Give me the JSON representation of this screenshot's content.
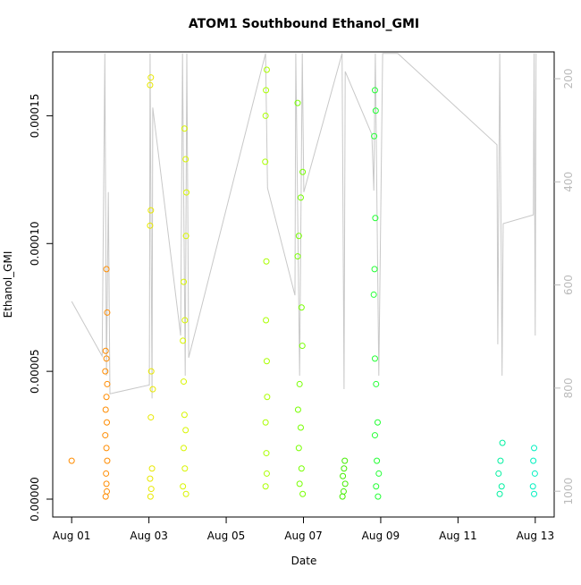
{
  "chart_data": {
    "type": "scatter",
    "title": "ATOM1 Southbound Ethanol_GMI",
    "x_label": "Date",
    "y_label": "Ethanol_GMI",
    "xlim": [
      0.51,
      13.49
    ],
    "xticks": [
      {
        "value": 1,
        "label": "Aug 01"
      },
      {
        "value": 3,
        "label": "Aug 03"
      },
      {
        "value": 5,
        "label": "Aug 05"
      },
      {
        "value": 7,
        "label": "Aug 07"
      },
      {
        "value": 9,
        "label": "Aug 09"
      },
      {
        "value": 11,
        "label": "Aug 11"
      },
      {
        "value": 13,
        "label": "Aug 13"
      }
    ],
    "ylim": [
      -7e-06,
      0.000175
    ],
    "yticks": [
      {
        "value": 0,
        "label": "0.00000"
      },
      {
        "value": 5e-05,
        "label": "0.00005"
      },
      {
        "value": 0.0001,
        "label": "0.00010"
      },
      {
        "value": 0.00015,
        "label": "0.00015"
      }
    ],
    "y2lim": [
      1050,
      148
    ],
    "y2ticks": [
      200,
      400,
      600,
      800,
      1000
    ],
    "series": [
      {
        "style": "line",
        "axis": "y2",
        "color": "#c8c8c8",
        "x": [
          1.0,
          1.79,
          1.86,
          1.9,
          1.95,
          1.99,
          3.01,
          3.03,
          3.08,
          3.1,
          3.82,
          3.87,
          3.94,
          3.98,
          4.03,
          6.02,
          6.07,
          6.78,
          6.8,
          6.9,
          6.97,
          7.01,
          8.0,
          8.05,
          8.08,
          8.77,
          8.82,
          8.86,
          8.95,
          9.05,
          9.44,
          12.01,
          12.03,
          12.08,
          12.14,
          12.17,
          12.95,
          12.97,
          13.0,
          13.02
        ],
        "values": [
          632,
          738,
          151,
          776,
          420,
          811,
          794,
          151,
          820,
          256,
          698,
          151,
          776,
          151,
          741,
          151,
          412,
          620,
          151,
          776,
          151,
          420,
          151,
          802,
          186,
          308,
          417,
          151,
          776,
          151,
          151,
          328,
          715,
          151,
          776,
          481,
          464,
          151,
          698,
          151
        ]
      },
      {
        "style": "points",
        "color": "#ff8c00",
        "x": [
          1.0
        ],
        "values": [
          1.5e-05
        ]
      },
      {
        "style": "points",
        "color": "#ff8c00",
        "x": [
          1.9,
          1.92,
          1.88,
          1.9,
          1.87,
          1.92,
          1.9,
          1.88,
          1.91,
          1.87,
          1.9,
          1.92,
          1.89,
          1.9,
          1.91,
          1.88
        ],
        "values": [
          9e-05,
          7.3e-05,
          5.8e-05,
          5.5e-05,
          5e-05,
          4.5e-05,
          4e-05,
          3.5e-05,
          3e-05,
          2.5e-05,
          2e-05,
          1.5e-05,
          1e-05,
          6e-06,
          3e-06,
          1e-06
        ]
      },
      {
        "style": "points",
        "color": "#e8e800",
        "x": [
          3.05,
          3.03,
          3.05,
          3.03,
          3.06,
          3.1,
          3.05,
          3.08,
          3.03,
          3.06,
          3.04
        ],
        "values": [
          0.000165,
          0.000162,
          0.000113,
          0.000107,
          5e-05,
          4.3e-05,
          3.2e-05,
          1.2e-05,
          8e-06,
          4e-06,
          1e-06
        ]
      },
      {
        "style": "points",
        "color": "#d8f500",
        "x": [
          3.92,
          3.95,
          3.97,
          3.96,
          3.9,
          3.93,
          3.88,
          3.9,
          3.92,
          3.95,
          3.9,
          3.93,
          3.88,
          3.96
        ],
        "values": [
          0.000145,
          0.000133,
          0.00012,
          0.000103,
          8.5e-05,
          7e-05,
          6.2e-05,
          4.6e-05,
          3.3e-05,
          2.7e-05,
          2e-05,
          1.2e-05,
          5e-06,
          2e-06
        ]
      },
      {
        "style": "points",
        "color": "#aaff00",
        "x": [
          6.05,
          6.03,
          6.02,
          6.01,
          6.04,
          6.03,
          6.05,
          6.06,
          6.02,
          6.04,
          6.05,
          6.02
        ],
        "values": [
          0.000168,
          0.00016,
          0.00015,
          0.000132,
          9.3e-05,
          7e-05,
          5.4e-05,
          4e-05,
          3e-05,
          1.8e-05,
          1e-05,
          5e-06
        ]
      },
      {
        "style": "points",
        "color": "#77ff00",
        "x": [
          6.85,
          6.98,
          6.93,
          6.88,
          6.85,
          6.95,
          6.97,
          6.9,
          6.86,
          6.93,
          6.88,
          6.95,
          6.9,
          6.98
        ],
        "values": [
          0.000155,
          0.000128,
          0.000118,
          0.000103,
          9.5e-05,
          7.5e-05,
          6e-05,
          4.5e-05,
          3.5e-05,
          2.8e-05,
          2e-05,
          1.2e-05,
          6e-06,
          2e-06
        ]
      },
      {
        "style": "points",
        "color": "#44ee00",
        "x": [
          8.07,
          8.05,
          8.02,
          8.08,
          8.04,
          8.01
        ],
        "values": [
          1.5e-05,
          1.2e-05,
          9e-06,
          6e-06,
          3e-06,
          1e-06
        ]
      },
      {
        "style": "points",
        "color": "#22ff33",
        "x": [
          8.85,
          8.87,
          8.83,
          8.86,
          8.84,
          8.82,
          8.85,
          8.88,
          8.92,
          8.85,
          8.9,
          8.95,
          8.88,
          8.93
        ],
        "values": [
          0.00016,
          0.000152,
          0.000142,
          0.00011,
          9e-05,
          8e-05,
          5.5e-05,
          4.5e-05,
          3e-05,
          2.5e-05,
          1.5e-05,
          1e-05,
          5e-06,
          1e-06
        ]
      },
      {
        "style": "points",
        "color": "#00f0a0",
        "x": [
          12.15,
          12.1,
          12.05,
          12.13,
          12.08
        ],
        "values": [
          2.2e-05,
          1.5e-05,
          1e-05,
          5e-06,
          2e-06
        ]
      },
      {
        "style": "points",
        "color": "#00f0c0",
        "x": [
          12.97,
          12.95,
          12.99,
          12.94,
          12.97
        ],
        "values": [
          2e-05,
          1.5e-05,
          1e-05,
          5e-06,
          2e-06
        ]
      }
    ]
  }
}
